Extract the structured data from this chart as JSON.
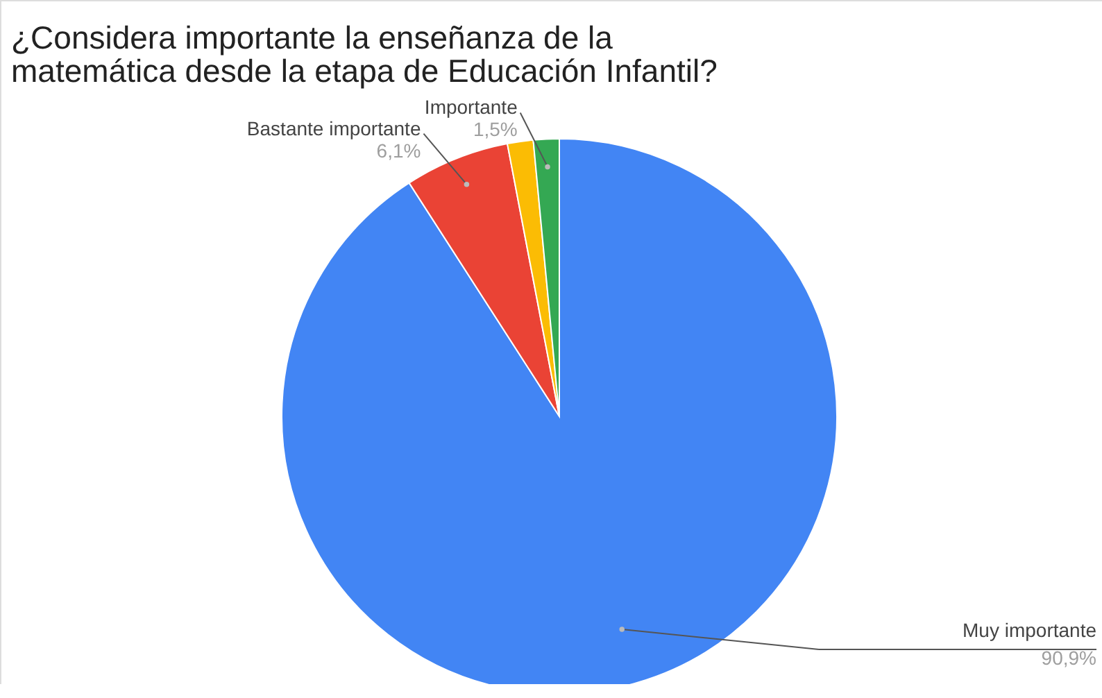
{
  "chart_data": {
    "type": "pie",
    "title": "¿Considera importante la enseñanza de la matemática desde la etapa de Educación Infantil?",
    "categories": [
      "Muy importante",
      "Bastante importante",
      null,
      "Importante"
    ],
    "values": [
      90.9,
      6.1,
      1.5,
      1.5
    ],
    "value_labels": [
      "90,9%",
      "6,1%",
      null,
      "1,5%"
    ],
    "colors": [
      "#4285f4",
      "#ea4335",
      "#fbbc04",
      "#34a853"
    ],
    "legend": false
  }
}
